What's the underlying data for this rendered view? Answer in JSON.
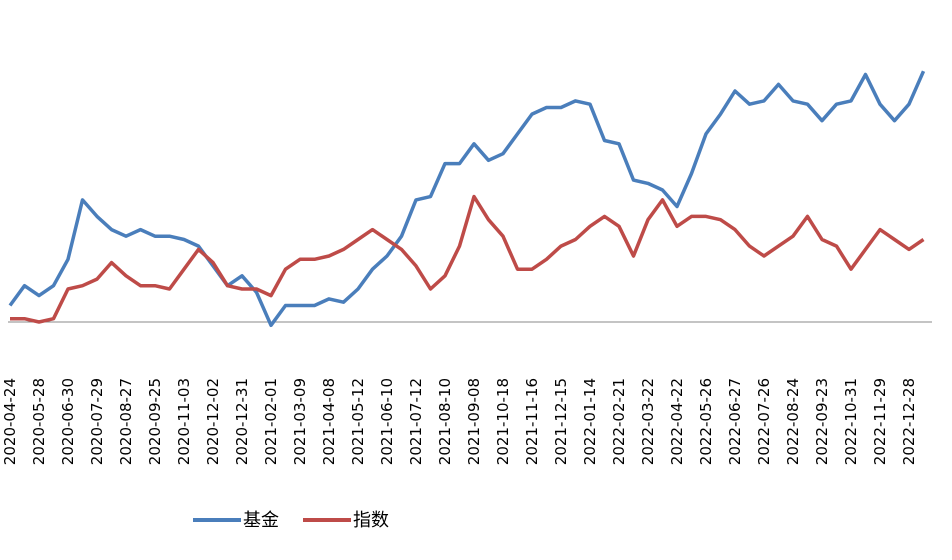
{
  "chart_data": {
    "type": "line",
    "categories": [
      "2020-04-24",
      null,
      "2020-05-28",
      null,
      "2020-06-30",
      null,
      "2020-07-29",
      null,
      "2020-08-27",
      null,
      "2020-09-25",
      null,
      "2020-11-03",
      null,
      "2020-12-02",
      null,
      "2020-12-31",
      null,
      "2021-02-01",
      null,
      "2021-03-09",
      null,
      "2021-04-08",
      null,
      "2021-05-12",
      null,
      "2021-06-10",
      null,
      "2021-07-12",
      null,
      "2021-08-10",
      null,
      "2021-09-08",
      null,
      "2021-10-18",
      null,
      "2021-11-16",
      null,
      "2021-12-15",
      null,
      "2022-01-14",
      null,
      "2022-02-21",
      null,
      "2022-03-22",
      null,
      "2022-04-22",
      null,
      "2022-05-26",
      null,
      "2022-06-27",
      null,
      "2022-07-26",
      null,
      "2022-08-24",
      null,
      "2022-09-23",
      null,
      "2022-10-31",
      null,
      "2022-11-29",
      null,
      "2022-12-28",
      null
    ],
    "series": [
      {
        "name": "基金",
        "color": "#4a7ebb",
        "values": [
          0.05,
          0.11,
          0.08,
          0.11,
          0.19,
          0.37,
          0.32,
          0.28,
          0.26,
          0.28,
          0.26,
          0.26,
          0.25,
          0.23,
          0.17,
          0.11,
          0.14,
          0.09,
          -0.01,
          0.05,
          0.05,
          0.05,
          0.07,
          0.06,
          0.1,
          0.16,
          0.2,
          0.26,
          0.37,
          0.38,
          0.48,
          0.48,
          0.54,
          0.49,
          0.51,
          0.57,
          0.63,
          0.65,
          0.65,
          0.67,
          0.66,
          0.55,
          0.54,
          0.43,
          0.42,
          0.4,
          0.35,
          0.45,
          0.57,
          0.63,
          0.7,
          0.66,
          0.67,
          0.72,
          0.67,
          0.66,
          0.61,
          0.66,
          0.67,
          0.75,
          0.66,
          0.61,
          0.66,
          0.76
        ]
      },
      {
        "name": "指数",
        "color": "#be4b48",
        "values": [
          0.01,
          0.01,
          0.0,
          0.01,
          0.1,
          0.11,
          0.13,
          0.18,
          0.14,
          0.11,
          0.11,
          0.1,
          0.16,
          0.22,
          0.18,
          0.11,
          0.1,
          0.1,
          0.08,
          0.16,
          0.19,
          0.19,
          0.2,
          0.22,
          0.25,
          0.28,
          0.25,
          0.22,
          0.17,
          0.1,
          0.14,
          0.23,
          0.38,
          0.31,
          0.26,
          0.16,
          0.16,
          0.19,
          0.23,
          0.25,
          0.29,
          0.32,
          0.29,
          0.2,
          0.31,
          0.37,
          0.29,
          0.32,
          0.32,
          0.31,
          0.28,
          0.23,
          0.2,
          0.23,
          0.26,
          0.32,
          0.25,
          0.23,
          0.16,
          0.22,
          0.28,
          0.25,
          0.22,
          0.25
        ]
      }
    ],
    "ylim": [
      -0.1,
      0.9
    ]
  }
}
